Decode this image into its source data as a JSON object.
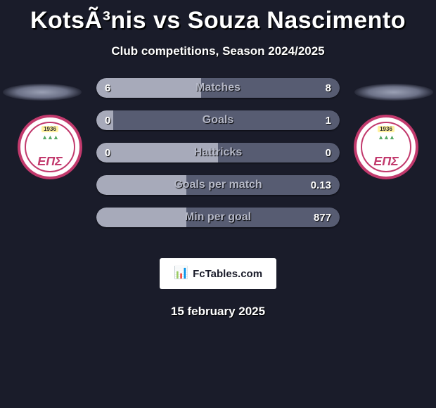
{
  "title": "KotsÃ³nis vs Souza Nascimento",
  "subtitle": "Club competitions, Season 2024/2025",
  "date": "15 february 2025",
  "brand": {
    "icon": "📊",
    "text": "FcTables.com"
  },
  "colors": {
    "background": "#1a1c2a",
    "bar_left": "#a7aaba",
    "bar_right": "#575c72",
    "bar_label": "#b6b9c8",
    "value_text": "#ffffff",
    "club_ring": "#c23a6d",
    "club_letters": "#c23a6d"
  },
  "club": {
    "year": "1936",
    "fig": "▲▲▲",
    "letters": "ΕΠΣ"
  },
  "rows": [
    {
      "label": "Matches",
      "left": "6",
      "right": "8",
      "left_pct": 43,
      "right_pct": 57
    },
    {
      "label": "Goals",
      "left": "0",
      "right": "1",
      "left_pct": 7,
      "right_pct": 93
    },
    {
      "label": "Hattricks",
      "left": "0",
      "right": "0",
      "left_pct": 50,
      "right_pct": 50
    },
    {
      "label": "Goals per match",
      "left": "",
      "right": "0.13",
      "left_pct": 37,
      "right_pct": 63
    },
    {
      "label": "Min per goal",
      "left": "",
      "right": "877",
      "left_pct": 37,
      "right_pct": 63
    }
  ]
}
